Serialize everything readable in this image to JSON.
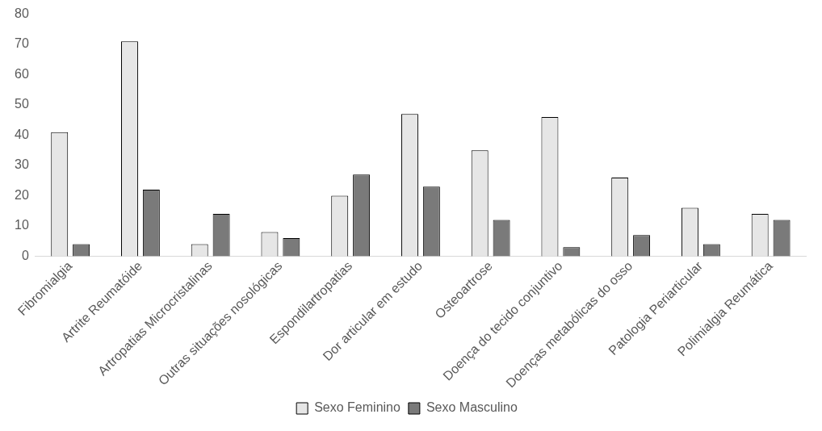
{
  "chart_data": {
    "type": "bar",
    "categories": [
      "Fibromialgia",
      "Artrite Reumatóide",
      "Artropatias Microcristalinas",
      "Outras situações nosológicas",
      "Espondilartropatias",
      "Dor articular em estudo",
      "Osteoartrose",
      "Doença do tecido conjuntivo",
      "Doenças metabólicas do osso",
      "Patologia Periarticular",
      "Polimialgia Reumática"
    ],
    "series": [
      {
        "name": "Sexo Feminino",
        "color": "#e6e6e6",
        "values": [
          41,
          71,
          4,
          8,
          20,
          47,
          35,
          46,
          26,
          16,
          14
        ]
      },
      {
        "name": "Sexo Masculino",
        "color": "#7a7a7a",
        "values": [
          4,
          22,
          14,
          6,
          27,
          23,
          12,
          3,
          7,
          4,
          12
        ]
      }
    ],
    "ylim": [
      0,
      80
    ],
    "yticks": [
      0,
      10,
      20,
      30,
      40,
      50,
      60,
      70,
      80
    ],
    "grid": false,
    "legend": "bottom"
  }
}
